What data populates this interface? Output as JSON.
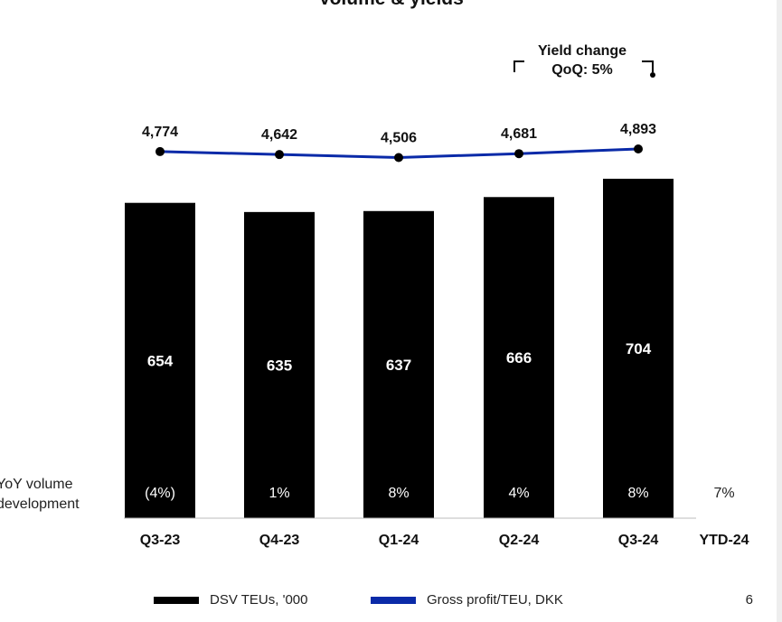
{
  "header": {
    "title": "Volume & yields"
  },
  "annotation": {
    "line1": "Yield change",
    "line2": "QoQ: 5%"
  },
  "yoy_label": {
    "line1": "YoY volume",
    "line2": "development"
  },
  "legend": {
    "bars_label": "DSV TEUs, '000",
    "line_label": "Gross profit/TEU, DKK",
    "bars_color": "#000000",
    "line_color": "#0a2aa8"
  },
  "page_number": "6",
  "chart_data": {
    "type": "bar",
    "categories": [
      "Q3-23",
      "Q4-23",
      "Q1-24",
      "Q2-24",
      "Q3-24"
    ],
    "extra_category": "YTD-24",
    "series": [
      {
        "name": "DSV TEUs, '000",
        "type": "bar",
        "values": [
          654,
          635,
          637,
          666,
          704
        ]
      },
      {
        "name": "Gross profit/TEU, DKK",
        "type": "line",
        "values": [
          4774,
          4642,
          4506,
          4681,
          4893
        ]
      }
    ],
    "bar_labels": [
      "654",
      "635",
      "637",
      "666",
      "704"
    ],
    "line_labels": [
      "4,774",
      "4,642",
      "4,506",
      "4,681",
      "4,893"
    ],
    "yoy_values": [
      "(4%)",
      "1%",
      "8%",
      "4%",
      "8%",
      "7%"
    ],
    "grid": false,
    "legend_position": "bottom"
  }
}
